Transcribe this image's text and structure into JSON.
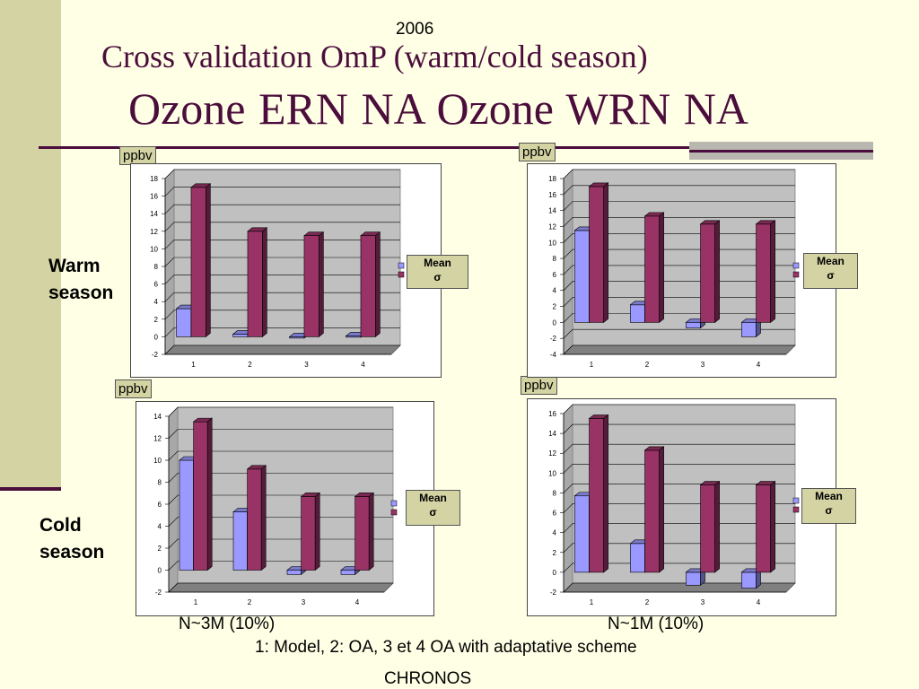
{
  "header": {
    "year": "2006",
    "title_line1": "Cross validation  OmP (warm/cold season)",
    "title_line2": "Ozone ERN NA   Ozone WRN NA"
  },
  "seasons": {
    "warm": "Warm season",
    "cold": "Cold season"
  },
  "unit_label": "ppbv",
  "legend": {
    "line1": "Mean",
    "line2": "σ"
  },
  "footer": {
    "left_n": "N~3M (10%)",
    "right_n": "N~1M (10%)",
    "caption": "1: Model, 2: OA, 3 et 4 OA with adaptative scheme",
    "source": "CHRONOS"
  },
  "colors": {
    "mean": "#9999ff",
    "sigma": "#993366",
    "wall": "#c0c0c0",
    "floor": "#808080"
  },
  "chart_data": [
    {
      "type": "bar",
      "region": "Ozone ERN NA",
      "season": "Warm season",
      "categories": [
        "1",
        "2",
        "3",
        "4"
      ],
      "series": [
        {
          "name": "Mean",
          "values": [
            3.2,
            0.3,
            0,
            0.1
          ]
        },
        {
          "name": "σ",
          "values": [
            17,
            12,
            11.5,
            11.5
          ]
        }
      ],
      "ylim": [
        -2,
        18
      ],
      "yticks": [
        -2,
        0,
        2,
        4,
        6,
        8,
        10,
        12,
        14,
        16,
        18
      ],
      "grid": true
    },
    {
      "type": "bar",
      "region": "Ozone WRN NA",
      "season": "Warm season",
      "categories": [
        "1",
        "2",
        "3",
        "4"
      ],
      "series": [
        {
          "name": "Mean",
          "values": [
            11.5,
            2.2,
            -0.7,
            -1.8
          ]
        },
        {
          "name": "σ",
          "values": [
            17,
            13.3,
            12.3,
            12.3
          ]
        }
      ],
      "ylim": [
        -4,
        18
      ],
      "yticks": [
        -4,
        -2,
        0,
        2,
        4,
        6,
        8,
        10,
        12,
        14,
        16,
        18
      ],
      "grid": true
    },
    {
      "type": "bar",
      "region": "Ozone ERN NA",
      "season": "Cold season",
      "categories": [
        "1",
        "2",
        "3",
        "4"
      ],
      "series": [
        {
          "name": "Mean",
          "values": [
            10,
            5.3,
            -0.4,
            -0.4
          ]
        },
        {
          "name": "σ",
          "values": [
            13.5,
            9.2,
            6.7,
            6.7
          ]
        }
      ],
      "ylim": [
        -2,
        14
      ],
      "yticks": [
        -2,
        0,
        2,
        4,
        6,
        8,
        10,
        12,
        14
      ],
      "grid": true
    },
    {
      "type": "bar",
      "region": "Ozone WRN NA",
      "season": "Cold season",
      "categories": [
        "1",
        "2",
        "3",
        "4"
      ],
      "series": [
        {
          "name": "Mean",
          "values": [
            7.7,
            2.9,
            -1.3,
            -1.6
          ]
        },
        {
          "name": "σ",
          "values": [
            15.5,
            12.3,
            8.8,
            8.8
          ]
        }
      ],
      "ylim": [
        -2,
        16
      ],
      "yticks": [
        -2,
        0,
        2,
        4,
        6,
        8,
        10,
        12,
        14,
        16
      ],
      "grid": true
    }
  ]
}
